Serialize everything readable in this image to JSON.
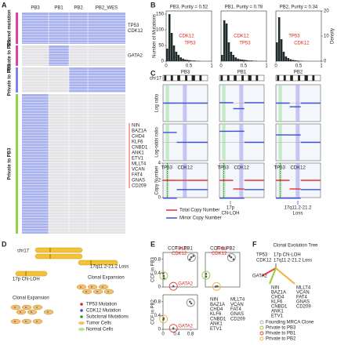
{
  "panel_labels": [
    "A",
    "B",
    "C",
    "D",
    "E",
    "F"
  ],
  "heatmap": {
    "columns": [
      "PB3",
      "PB1",
      "PB2",
      "PB2_WES"
    ],
    "present_color": "#aab2ee",
    "absent_color": "#e3e3e6",
    "gene_color": "#e0221c",
    "groups": [
      {
        "name": "Shared mutation",
        "bar_color": "#e23fa8",
        "columns": [
          "PB3",
          "PB1",
          "PB2",
          "PB2_WES"
        ],
        "genes": [
          "TP53",
          "CDK12"
        ]
      },
      {
        "name": "Private to PB1",
        "bar_color": "#e23fa8",
        "columns": [
          "PB1"
        ],
        "genes": [
          "GATA2"
        ]
      },
      {
        "name": "Private to PB2",
        "bar_color": "#7f7ff0",
        "columns": [
          "PB2",
          "PB2_WES"
        ]
      },
      {
        "name": "Private to PB3",
        "bar_color": "#8fd63a",
        "columns": [
          "PB3"
        ],
        "genes": [
          "NIN",
          "BAZ1A",
          "CHD4",
          "KLF6",
          "CNBD1",
          "ANK1",
          "ETV1",
          "MLLT4",
          "VCAN",
          "FAT4",
          "GNAS",
          "CD209"
        ]
      }
    ]
  },
  "chart_data": [
    {
      "type": "histogram",
      "title": "PB3, Purity = 0.52",
      "ylabel": "Number of Mutations",
      "color": "#1f2a2a",
      "bins": [
        0,
        0.05,
        0.1,
        0.15,
        0.2,
        0.25,
        0.3,
        0.35,
        0.4,
        0.45,
        0.5,
        0.55,
        0.6,
        0.65,
        0.7,
        0.75,
        0.8,
        0.85,
        0.9,
        0.95,
        1
      ],
      "counts": [
        40,
        150,
        90,
        50,
        30,
        20,
        12,
        8,
        5,
        4,
        3,
        2,
        2,
        1,
        1,
        0,
        0,
        0,
        0,
        0
      ],
      "xlim": [
        0,
        1
      ],
      "xticks": [
        0,
        0.5,
        1
      ],
      "ylim": [
        0,
        160
      ],
      "yticks": [
        0,
        50,
        100,
        150
      ],
      "annotations": [
        "CDK12",
        "TP53"
      ]
    },
    {
      "type": "histogram",
      "title": "PB1, Purity = 0.78",
      "color": "#1f2a2a",
      "bins": [
        0,
        0.05,
        0.1,
        0.15,
        0.2,
        0.25,
        0.3,
        0.35,
        0.4,
        0.45,
        0.5,
        0.55,
        0.6,
        0.65,
        0.7,
        0.75,
        0.8,
        0.85,
        0.9,
        0.95,
        1
      ],
      "counts": [
        20,
        130,
        120,
        60,
        30,
        20,
        12,
        8,
        6,
        5,
        4,
        3,
        2,
        2,
        1,
        1,
        0,
        0,
        0,
        0
      ],
      "xlim": [
        0,
        1
      ],
      "xticks": [
        0,
        0.5,
        1
      ],
      "ylim": [
        0,
        160
      ],
      "annotations": [
        "CDK12",
        "TP53"
      ]
    },
    {
      "type": "histogram",
      "title": "PB2, Purity = 0.34",
      "y2label": "Density",
      "color": "#1f2a2a",
      "bins": [
        0,
        0.05,
        0.1,
        0.15,
        0.2,
        0.25,
        0.3,
        0.35,
        0.4,
        0.45,
        0.5,
        0.55,
        0.6,
        0.65,
        0.7,
        0.75,
        0.8,
        0.85,
        0.9,
        0.95,
        1
      ],
      "counts": [
        60,
        140,
        70,
        30,
        15,
        10,
        6,
        4,
        3,
        2,
        1,
        1,
        0,
        0,
        0,
        0,
        0,
        0,
        0,
        0
      ],
      "xlim": [
        0,
        1
      ],
      "xticks": [
        0,
        0.5,
        1
      ],
      "ylim": [
        0,
        160
      ],
      "y2lim": [
        0,
        20
      ],
      "y2ticks": [
        0,
        10,
        20
      ],
      "annotations": [
        "TP53",
        "CDK12"
      ]
    },
    {
      "type": "scatter",
      "xlabel": "CCF in PB1",
      "ylabel": "CCF in PB3",
      "xlim": [
        0,
        1
      ],
      "ylim": [
        0,
        1
      ],
      "yticks": [
        0,
        0.4,
        0.8
      ],
      "series": [
        {
          "color": "#8a8a8a",
          "x": [
            0.82,
            0.78,
            0.88
          ],
          "values": [
            0.86,
            0.8,
            0.9
          ],
          "labels": [
            "TP53",
            "CDK12"
          ]
        },
        {
          "color": "#e8453c",
          "x": [
            0.3
          ],
          "values": [
            0.02
          ],
          "labels": [
            "GATA2"
          ]
        },
        {
          "color": "#9acd32",
          "x": [
            0.02,
            0.03,
            0.01
          ],
          "values": [
            0.32,
            0.25,
            0.4
          ]
        }
      ]
    },
    {
      "type": "scatter",
      "xlabel": "CCF in PB2",
      "xlim": [
        0,
        1
      ],
      "ylim": [
        0,
        1
      ],
      "series": [
        {
          "color": "#8a8a8a",
          "x": [
            0.75,
            0.82,
            0.7
          ],
          "values": [
            0.86,
            0.8,
            0.9
          ],
          "labels": [
            "TP53",
            "CDK12"
          ]
        },
        {
          "color": "#9acd32",
          "x": [
            0.02,
            0.02
          ],
          "values": [
            0.3,
            0.38
          ]
        },
        {
          "color": "#f0b23a",
          "x": [
            0.35,
            0.3
          ],
          "values": [
            0.02,
            0.01
          ]
        }
      ]
    },
    {
      "type": "scatter",
      "ylabel": "CCF in PB2",
      "xlim": [
        0,
        1
      ],
      "ylim": [
        0,
        1
      ],
      "xticks": [
        0,
        0.4,
        0.8
      ],
      "yticks": [
        0,
        0.4,
        0.8
      ],
      "series": [
        {
          "color": "#8a8a8a",
          "x": [
            0.82,
            0.78
          ],
          "values": [
            0.75,
            0.8
          ]
        },
        {
          "color": "#e8453c",
          "x": [
            0.3
          ],
          "values": [
            0.03
          ],
          "labels": [
            "GATA2"
          ]
        },
        {
          "color": "#f0b23a",
          "x": [
            0.02,
            0.01
          ],
          "values": [
            0.32,
            0.28
          ]
        }
      ]
    }
  ],
  "copy_number": {
    "chromosome": "chr17",
    "row_labels": [
      "Log ratio",
      "Log-odds ratio",
      "Copy Number"
    ],
    "genes": [
      "TP53",
      "CDK12"
    ],
    "log_ratio_lim": [
      -2,
      2
    ],
    "log_odds_lim": [
      -3,
      3
    ],
    "copy_lim": [
      0,
      4
    ],
    "copy_ticks": [
      0,
      2,
      4
    ],
    "legend": [
      {
        "name": "Total Copy Number",
        "color": "#e8312f"
      },
      {
        "name": "Minor Copy Number",
        "color": "#3a4fd8"
      }
    ],
    "annotations": [
      [
        "17p",
        "CN-LOH"
      ],
      [
        "17q11.2-21.2",
        "Loss"
      ]
    ],
    "samples": [
      {
        "name": "PB3",
        "starts": [
          0,
          25,
          45
        ],
        "ends": [
          25,
          45,
          81
        ],
        "log_ratio": [
          0,
          0,
          0
        ],
        "log_odds": [
          1.6,
          0,
          0
        ],
        "total": [
          2,
          2,
          2
        ],
        "minor": [
          0,
          1,
          1
        ]
      },
      {
        "name": "PB1",
        "starts": [
          0,
          25,
          45
        ],
        "ends": [
          25,
          45,
          81
        ],
        "log_ratio": [
          0.05,
          -0.6,
          0.05
        ],
        "log_odds": [
          1.8,
          1.8,
          0
        ],
        "total": [
          2,
          1,
          2
        ],
        "minor": [
          0,
          0,
          1
        ]
      },
      {
        "name": "PB2",
        "starts": [
          0,
          25,
          45
        ],
        "ends": [
          25,
          45,
          81
        ],
        "log_ratio": [
          0,
          -0.4,
          0
        ],
        "log_odds": [
          1.2,
          1.2,
          0
        ],
        "total": [
          2,
          1,
          2
        ],
        "minor": [
          0,
          0,
          1
        ]
      }
    ]
  },
  "diagram": {
    "chromosome": "chr17",
    "events": [
      "17q11.2-21.2 Loss",
      "17p CN-LOH",
      "Clonal Expansion",
      "Clonal Expansion"
    ],
    "legend": [
      "TP53 Mutation",
      "CDK12 Mutation",
      "Subclonal Mutations",
      "Tumor Cells",
      "Normal Cells"
    ]
  },
  "tree": {
    "title": "Clonal Evolution Tree",
    "root_labels": [
      "TP53",
      "CDK12"
    ],
    "event_labels": [
      "17p CN-LOH",
      "17q11.2-21.2 Loss"
    ],
    "branch_label": "GATA2",
    "legend": [
      {
        "name": "Founding MRCA Clone",
        "color": "#b0b0b0"
      },
      {
        "name": "Private to PB3",
        "color": "#9acd32"
      },
      {
        "name": "Private to PB1",
        "color": "#e8453c"
      },
      {
        "name": "Private to PB2",
        "color": "#f0b23a"
      }
    ]
  }
}
